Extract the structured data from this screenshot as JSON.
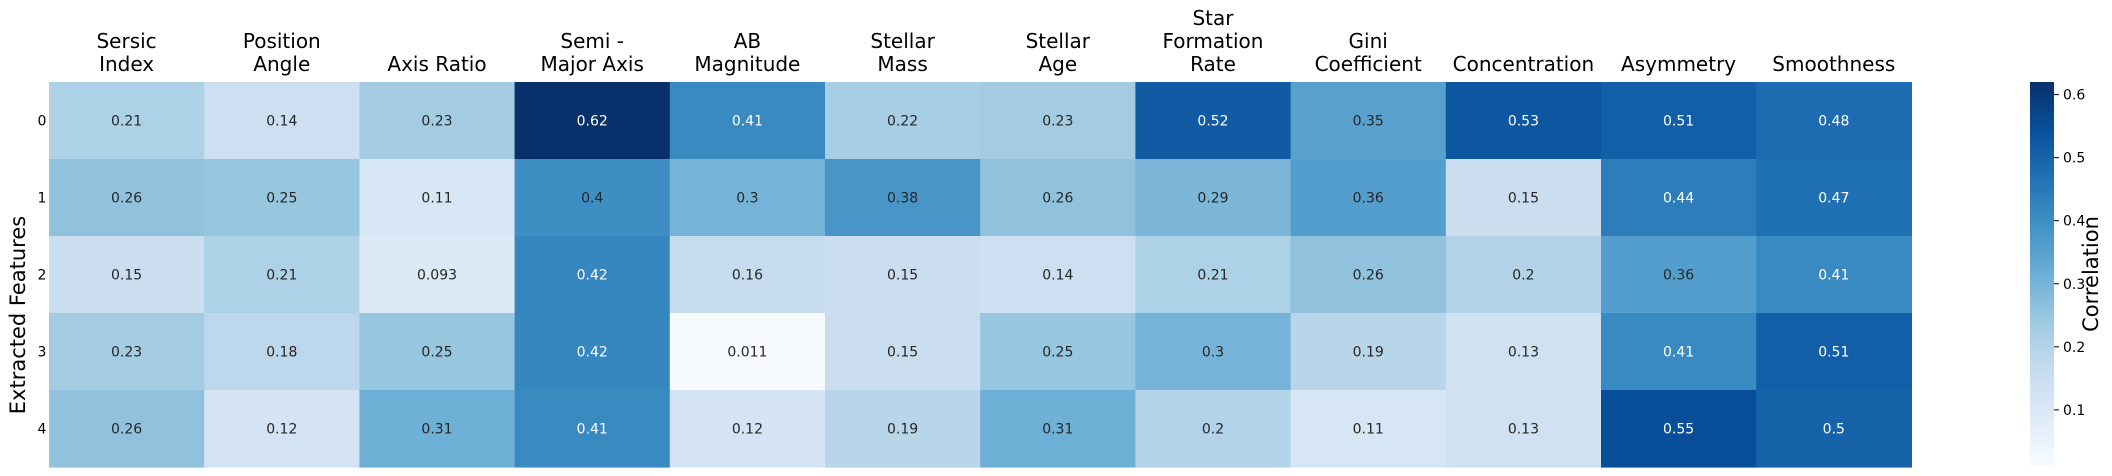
{
  "chart_data": {
    "type": "heatmap",
    "title": "",
    "xlabel": "",
    "ylabel": "Extracted Features",
    "x_axis_position": "top",
    "columns": [
      [
        "Sersic",
        "Index"
      ],
      [
        "Position",
        "Angle"
      ],
      [
        "Axis Ratio"
      ],
      [
        "Semi -",
        "Major Axis"
      ],
      [
        "AB",
        "Magnitude"
      ],
      [
        "Stellar",
        "Mass"
      ],
      [
        "Stellar",
        "Age"
      ],
      [
        "Star",
        "Formation",
        "Rate"
      ],
      [
        "Gini",
        "Coefficient"
      ],
      [
        "Concentration"
      ],
      [
        "Asymmetry"
      ],
      [
        "Smoothness"
      ]
    ],
    "rows": [
      "0",
      "1",
      "2",
      "3",
      "4"
    ],
    "values": [
      [
        0.21,
        0.14,
        0.23,
        0.62,
        0.41,
        0.22,
        0.23,
        0.52,
        0.35,
        0.53,
        0.51,
        0.48
      ],
      [
        0.26,
        0.25,
        0.11,
        0.4,
        0.3,
        0.38,
        0.26,
        0.29,
        0.36,
        0.15,
        0.44,
        0.47
      ],
      [
        0.15,
        0.21,
        0.093,
        0.42,
        0.16,
        0.15,
        0.14,
        0.21,
        0.26,
        0.2,
        0.36,
        0.41
      ],
      [
        0.23,
        0.18,
        0.25,
        0.42,
        0.011,
        0.15,
        0.25,
        0.3,
        0.19,
        0.13,
        0.41,
        0.51
      ],
      [
        0.26,
        0.12,
        0.31,
        0.41,
        0.12,
        0.19,
        0.31,
        0.2,
        0.11,
        0.13,
        0.55,
        0.5
      ]
    ],
    "colormap": "Blues",
    "colormap_stops": [
      "#f7fbff",
      "#deebf7",
      "#c6dbef",
      "#9ecae1",
      "#6baed6",
      "#4292c6",
      "#2171b5",
      "#08519c",
      "#08306b"
    ],
    "color_range": [
      0.011,
      0.62
    ],
    "annotations": true,
    "grid": false,
    "colorbar": {
      "label": "Correlation",
      "ticks": [
        "0.1",
        "0.2",
        "0.3",
        "0.4",
        "0.5",
        "0.6"
      ],
      "placement": "right"
    }
  }
}
